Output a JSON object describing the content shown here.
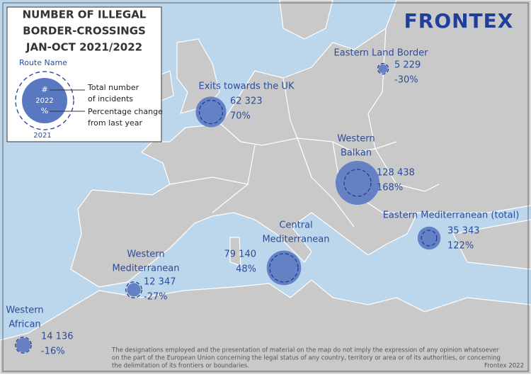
{
  "header": {
    "title_lines": [
      "NUMBER OF ILLEGAL",
      "BORDER-CROSSINGS",
      "JAN-OCT 2021/2022"
    ],
    "logo": "FRONTEX"
  },
  "legend": {
    "route_name": "Route Name",
    "hash": "#",
    "year_now": "2022",
    "percent": "%",
    "year_before": "2021",
    "total_lines": [
      "Total number",
      "of incidents"
    ],
    "change_lines": [
      "Percentage change",
      "from last year"
    ]
  },
  "routes": [
    {
      "name_lines": [
        "Eastern Land Border"
      ],
      "value": 5229,
      "value_label": "5 229",
      "change": -30,
      "change_label": "-30%"
    },
    {
      "name_lines": [
        "Exits towards the UK"
      ],
      "value": 62323,
      "value_label": "62 323",
      "change": 70,
      "change_label": "70%"
    },
    {
      "name_lines": [
        "Western",
        "Balkan"
      ],
      "value": 128438,
      "value_label": "128 438",
      "change": 168,
      "change_label": "168%"
    },
    {
      "name_lines": [
        "Eastern Mediterranean (total)"
      ],
      "value": 35343,
      "value_label": "35 343",
      "change": 122,
      "change_label": "122%"
    },
    {
      "name_lines": [
        "Central",
        "Mediterranean"
      ],
      "value": 79140,
      "value_label": "79 140",
      "change": 48,
      "change_label": "48%"
    },
    {
      "name_lines": [
        "Western",
        "Mediterranean"
      ],
      "value": 12347,
      "value_label": "12 347",
      "change": -27,
      "change_label": "-27%"
    },
    {
      "name_lines": [
        "Western",
        "African"
      ],
      "value": 14136,
      "value_label": "14 136",
      "change": -16,
      "change_label": "-16%"
    }
  ],
  "footer": {
    "disclaimer_lines": [
      "The designations employed and the presentation of material on the map do not imply the expression of any opinion whatsoever",
      "on the part of the European Union concerning the legal status of any country, territory or area or of its authorities, or concerning",
      "the delimitation of its frontiers or boundaries."
    ],
    "credit": "Frontex 2022"
  }
}
